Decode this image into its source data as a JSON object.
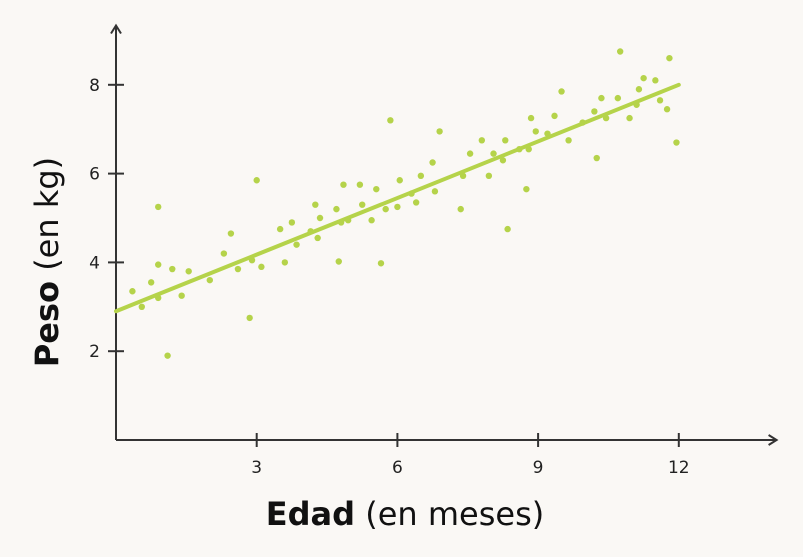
{
  "chart_data": {
    "type": "scatter",
    "xlabel_bold": "Edad",
    "xlabel_rest": " (en meses)",
    "ylabel_bold": "Peso",
    "ylabel_rest": " (en kg)",
    "xlim": [
      0,
      14
    ],
    "ylim": [
      0,
      9.2
    ],
    "xticks": [
      3,
      6,
      9,
      12
    ],
    "yticks": [
      2,
      4,
      6,
      8
    ],
    "grid": false,
    "point_color": "#b5d34a",
    "line_color": "#b5d34a",
    "trendline": {
      "x": [
        0,
        12
      ],
      "y": [
        2.9,
        8.0
      ]
    },
    "points": [
      [
        0.35,
        3.35
      ],
      [
        0.55,
        3.0
      ],
      [
        0.75,
        3.55
      ],
      [
        0.9,
        3.95
      ],
      [
        0.9,
        3.2
      ],
      [
        0.9,
        5.25
      ],
      [
        1.1,
        1.9
      ],
      [
        1.2,
        3.85
      ],
      [
        1.4,
        3.25
      ],
      [
        1.55,
        3.8
      ],
      [
        2.0,
        3.6
      ],
      [
        2.3,
        4.2
      ],
      [
        2.45,
        4.65
      ],
      [
        2.6,
        3.85
      ],
      [
        2.85,
        2.75
      ],
      [
        2.9,
        4.05
      ],
      [
        3.0,
        5.85
      ],
      [
        3.1,
        3.9
      ],
      [
        3.5,
        4.75
      ],
      [
        3.6,
        4.0
      ],
      [
        3.75,
        4.9
      ],
      [
        3.85,
        4.4
      ],
      [
        4.15,
        4.7
      ],
      [
        4.25,
        5.3
      ],
      [
        4.3,
        4.55
      ],
      [
        4.35,
        5.0
      ],
      [
        4.7,
        5.2
      ],
      [
        4.75,
        4.02
      ],
      [
        4.8,
        4.9
      ],
      [
        4.85,
        5.75
      ],
      [
        4.95,
        4.95
      ],
      [
        5.2,
        5.75
      ],
      [
        5.25,
        5.3
      ],
      [
        5.45,
        4.95
      ],
      [
        5.55,
        5.65
      ],
      [
        5.65,
        3.98
      ],
      [
        5.75,
        5.2
      ],
      [
        5.85,
        7.2
      ],
      [
        6.0,
        5.25
      ],
      [
        6.05,
        5.85
      ],
      [
        6.3,
        5.55
      ],
      [
        6.4,
        5.35
      ],
      [
        6.5,
        5.95
      ],
      [
        6.75,
        6.25
      ],
      [
        6.8,
        5.6
      ],
      [
        6.9,
        6.95
      ],
      [
        7.35,
        5.2
      ],
      [
        7.4,
        5.95
      ],
      [
        7.55,
        6.45
      ],
      [
        7.8,
        6.75
      ],
      [
        7.95,
        5.95
      ],
      [
        8.05,
        6.45
      ],
      [
        8.25,
        6.3
      ],
      [
        8.3,
        6.75
      ],
      [
        8.35,
        4.75
      ],
      [
        8.6,
        6.55
      ],
      [
        8.75,
        5.65
      ],
      [
        8.8,
        6.55
      ],
      [
        8.85,
        7.25
      ],
      [
        8.95,
        6.95
      ],
      [
        9.2,
        6.9
      ],
      [
        9.35,
        7.3
      ],
      [
        9.5,
        7.85
      ],
      [
        9.65,
        6.75
      ],
      [
        9.95,
        7.15
      ],
      [
        10.2,
        7.4
      ],
      [
        10.25,
        6.35
      ],
      [
        10.35,
        7.7
      ],
      [
        10.45,
        7.25
      ],
      [
        10.7,
        7.7
      ],
      [
        10.75,
        8.75
      ],
      [
        10.95,
        7.25
      ],
      [
        11.1,
        7.55
      ],
      [
        11.15,
        7.9
      ],
      [
        11.25,
        8.15
      ],
      [
        11.5,
        8.1
      ],
      [
        11.6,
        7.65
      ],
      [
        11.75,
        7.45
      ],
      [
        11.8,
        8.6
      ],
      [
        11.95,
        6.7
      ]
    ]
  }
}
